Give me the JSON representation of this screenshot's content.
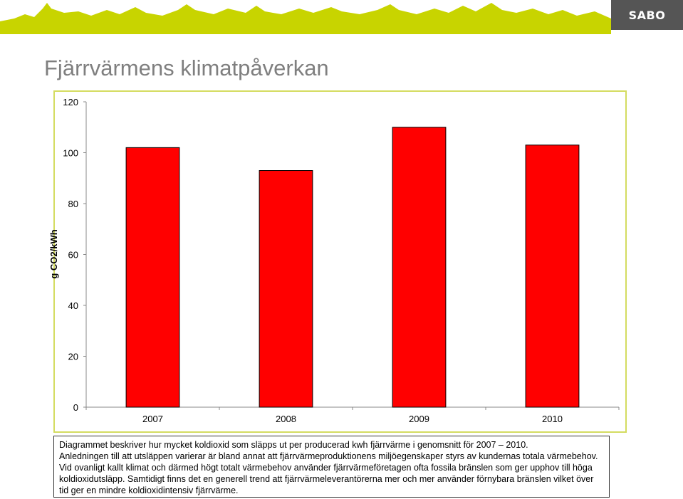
{
  "header": {
    "logo_text": "SABO",
    "banner_color": "#c8d400",
    "logo_bg": "#555555"
  },
  "page_title": "Fjärrvärmens klimatpåverkan",
  "chart_data": {
    "type": "bar",
    "title": "",
    "xlabel": "",
    "ylabel": "g CO2/kWh",
    "categories": [
      "2007",
      "2008",
      "2009",
      "2010"
    ],
    "values": [
      102,
      93,
      110,
      103
    ],
    "ylim": [
      0,
      120
    ],
    "yticks": [
      "0",
      "20",
      "40",
      "60",
      "80",
      "100",
      "120"
    ],
    "grid": false,
    "legend": "none",
    "bar_color": "#ff0000",
    "frame_color": "#d4dc60"
  },
  "description": {
    "paragraph1": "Diagrammet beskriver hur mycket koldioxid som släpps ut per producerad kwh fjärrvärme i genomsnitt för 2007 – 2010.",
    "paragraph2": "Anledningen till att utsläppen varierar är bland annat att fjärrvärmeproduktionens miljöegenskaper styrs av kundernas totala värmebehov. Vid ovanligt kallt klimat och därmed högt totalt värmebehov använder fjärrvärmeföretagen ofta fossila bränslen som ger upphov till höga koldioxidutsläpp. Samtidigt finns det en generell trend att fjärrvärmeleverantörerna mer och mer använder förnybara bränslen vilket över tid ger en mindre koldioxidintensiv fjärrvärme."
  }
}
